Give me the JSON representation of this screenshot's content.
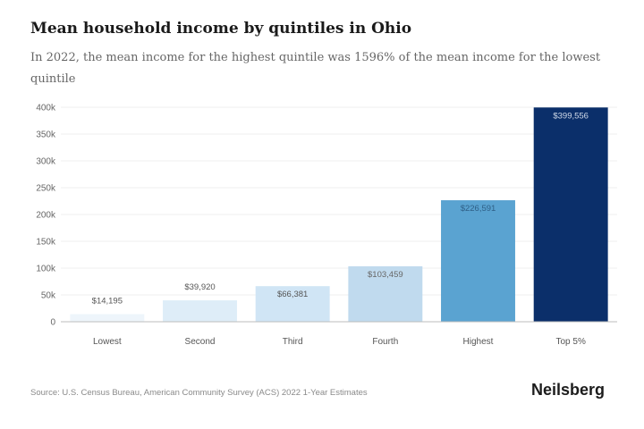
{
  "title": "Mean household income by quintiles in Ohio",
  "subtitle": "In 2022, the mean income for the highest quintile was 1596% of the mean income for the lowest quintile",
  "source": "Source: U.S. Census Bureau, American Community Survey (ACS) 2022 1-Year Estimates",
  "brand": "Neilsberg",
  "chart_data": {
    "type": "bar",
    "title": "Mean household income by quintiles in Ohio",
    "categories": [
      "Lowest",
      "Second",
      "Third",
      "Fourth",
      "Highest",
      "Top 5%"
    ],
    "values": [
      14195,
      39920,
      66381,
      103459,
      226591,
      399556
    ],
    "value_labels": [
      "$14,195",
      "$39,920",
      "$66,381",
      "$103,459",
      "$226,591",
      "$399,556"
    ],
    "bar_colors": [
      "#eef5fb",
      "#deedf8",
      "#d0e5f5",
      "#c0daee",
      "#5aa3d1",
      "#0b2f6a"
    ],
    "value_label_colors": [
      "#555555",
      "#555555",
      "#555555",
      "#666666",
      "#2f5f86",
      "#cfd9e8"
    ],
    "y_ticks": [
      0,
      50000,
      100000,
      150000,
      200000,
      250000,
      300000,
      350000,
      400000
    ],
    "y_tick_labels": [
      "0",
      "50k",
      "100k",
      "150k",
      "200k",
      "250k",
      "300k",
      "350k",
      "400k"
    ],
    "ylim": [
      0,
      400000
    ],
    "xlabel": "",
    "ylabel": "",
    "grid": true
  }
}
